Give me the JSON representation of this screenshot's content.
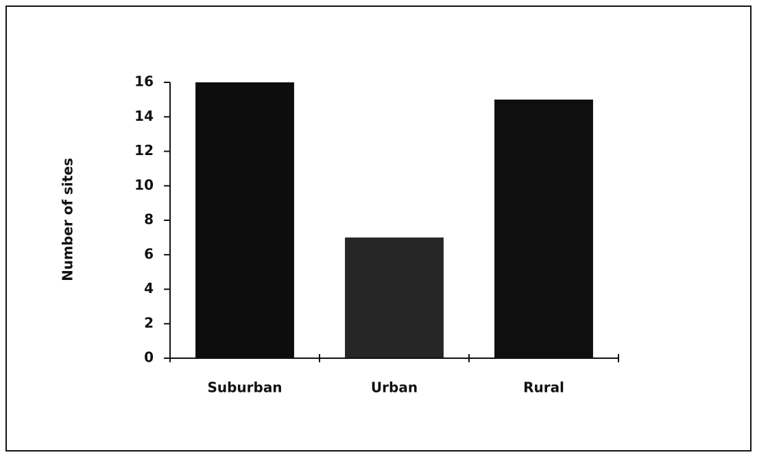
{
  "chart_data": {
    "type": "bar",
    "y_label": "Number of sites",
    "categories": [
      "Suburban",
      "Urban",
      "Rural"
    ],
    "values": [
      16,
      7,
      15
    ],
    "colors": [
      "#0d0d0d",
      "#262626",
      "#0f0f0f"
    ],
    "ylim": [
      0,
      16
    ],
    "yticks": [
      0,
      2,
      4,
      6,
      8,
      10,
      12,
      14,
      16
    ],
    "grid": false
  }
}
